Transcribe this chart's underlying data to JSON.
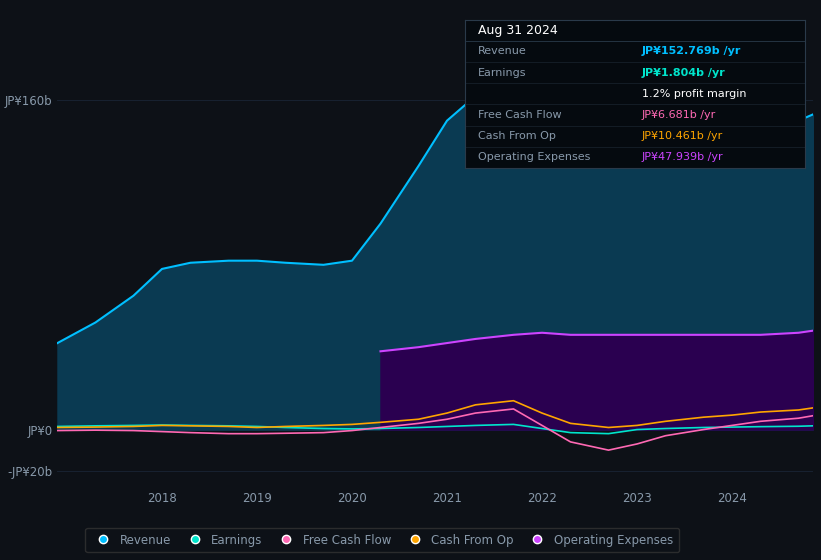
{
  "background_color": "#0d1117",
  "plot_bg_color": "#0d1117",
  "ylim": [
    -28,
    195
  ],
  "x_years": [
    2016.9,
    2017.3,
    2017.7,
    2018.0,
    2018.3,
    2018.7,
    2019.0,
    2019.3,
    2019.7,
    2020.0,
    2020.3,
    2020.7,
    2021.0,
    2021.3,
    2021.7,
    2022.0,
    2022.3,
    2022.7,
    2023.0,
    2023.3,
    2023.7,
    2024.0,
    2024.3,
    2024.7,
    2024.85
  ],
  "revenue": [
    42,
    52,
    65,
    78,
    81,
    82,
    82,
    81,
    80,
    82,
    100,
    128,
    150,
    162,
    168,
    166,
    163,
    158,
    150,
    148,
    147,
    145,
    147,
    150,
    153
  ],
  "earnings": [
    1.5,
    1.8,
    2.0,
    2.2,
    2.0,
    1.8,
    1.5,
    1.0,
    0.5,
    0.3,
    0.5,
    1.0,
    1.5,
    2.0,
    2.5,
    0.5,
    -1.5,
    -2.0,
    0.0,
    0.5,
    1.0,
    1.2,
    1.4,
    1.6,
    1.8
  ],
  "free_cash_flow": [
    -0.5,
    -0.3,
    -0.5,
    -1.0,
    -1.5,
    -2.0,
    -2.0,
    -1.8,
    -1.5,
    -0.5,
    1.0,
    3.0,
    5.0,
    8.0,
    10.0,
    2.0,
    -6.0,
    -10.0,
    -7.0,
    -3.0,
    0.0,
    2.0,
    4.0,
    5.5,
    6.7
  ],
  "cash_from_op": [
    1.0,
    1.2,
    1.5,
    2.0,
    1.8,
    1.5,
    1.0,
    1.5,
    2.0,
    2.5,
    3.5,
    5.0,
    8.0,
    12.0,
    14.0,
    8.0,
    3.0,
    1.0,
    2.0,
    4.0,
    6.0,
    7.0,
    8.5,
    9.5,
    10.5
  ],
  "op_expenses": [
    0,
    0,
    0,
    0,
    0,
    0,
    0,
    0,
    0,
    0,
    38,
    40,
    42,
    44,
    46,
    47,
    46,
    46,
    46,
    46,
    46,
    46,
    46,
    47,
    48
  ],
  "colors": {
    "revenue": "#00bfff",
    "earnings": "#00e5cc",
    "free_cash_flow": "#ff69b4",
    "cash_from_op": "#ffa500",
    "op_expenses": "#cc44ff"
  },
  "revenue_fill": "#0a3a52",
  "opex_fill": "#2a0050",
  "grid_color": "#1a2535",
  "text_color": "#8899aa",
  "ytick_vals": [
    -20,
    0,
    160
  ],
  "ytick_labels": [
    "-JP¥20b",
    "JP¥0",
    "JP¥160b"
  ],
  "xtick_vals": [
    2018,
    2019,
    2020,
    2021,
    2022,
    2023,
    2024
  ],
  "tooltip": {
    "date": "Aug 31 2024",
    "rows": [
      {
        "label": "Revenue",
        "value": "JP¥152.769b /yr",
        "label_color": "#8899aa",
        "value_color": "#00bfff"
      },
      {
        "label": "Earnings",
        "value": "JP¥1.804b /yr",
        "label_color": "#8899aa",
        "value_color": "#00e5cc"
      },
      {
        "label": "",
        "value": "1.2% profit margin",
        "label_color": "#8899aa",
        "value_color": "#ffffff"
      },
      {
        "label": "Free Cash Flow",
        "value": "JP¥6.681b /yr",
        "label_color": "#8899aa",
        "value_color": "#ff69b4"
      },
      {
        "label": "Cash From Op",
        "value": "JP¥10.461b /yr",
        "label_color": "#8899aa",
        "value_color": "#ffa500"
      },
      {
        "label": "Operating Expenses",
        "value": "JP¥47.939b /yr",
        "label_color": "#8899aa",
        "value_color": "#cc44ff"
      }
    ]
  }
}
